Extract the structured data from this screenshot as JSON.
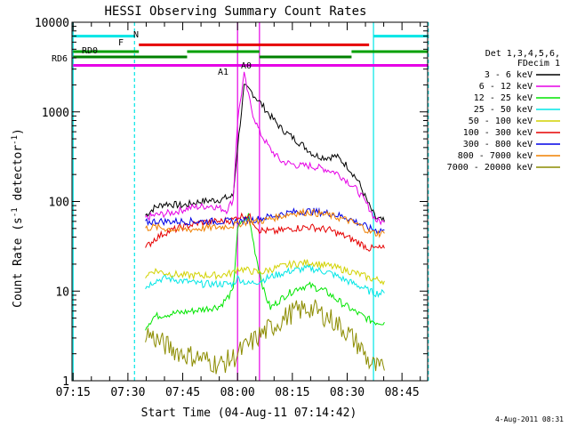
{
  "chart_data": {
    "type": "line",
    "title": "HESSI Observing Summary Count Rates",
    "xlabel": "Start Time (04-Aug-11 07:14:42)",
    "ylabel_main": "Count Rate (s",
    "ylabel_sup1": "-1",
    "ylabel_mid": " detector",
    "ylabel_sup2": "-1",
    "ylabel_end": ")",
    "yscale": "log",
    "xlim": [
      "07:14:42",
      "08:52:00"
    ],
    "ylim": [
      1,
      10000
    ],
    "x_ticks": [
      "07:15",
      "07:30",
      "07:45",
      "08:00",
      "08:15",
      "08:30",
      "08:45"
    ],
    "y_ticks": [
      "1",
      "10",
      "100",
      "1000",
      "10000"
    ],
    "legend": {
      "placement": "right",
      "header": [
        "Det 1,3,4,5,6,",
        "FDecim 1"
      ],
      "entries": [
        {
          "label": "3 - 6 keV",
          "color": "#000000"
        },
        {
          "label": "6 - 12 keV",
          "color": "#e600e6"
        },
        {
          "label": "12 - 25 keV",
          "color": "#00e600"
        },
        {
          "label": "25 - 50 keV",
          "color": "#00e6e6"
        },
        {
          "label": "50 - 100 keV",
          "color": "#d2d200"
        },
        {
          "label": "100 - 300 keV",
          "color": "#e60000"
        },
        {
          "label": "300 - 800 keV",
          "color": "#0000e6"
        },
        {
          "label": "800 - 7000 keV",
          "color": "#f08000"
        },
        {
          "label": "7000 - 20000 keV",
          "color": "#8c8c00"
        }
      ]
    },
    "series": [
      {
        "label_index": 0,
        "values": [
          [
            7.58,
            70
          ],
          [
            7.62,
            85
          ],
          [
            7.67,
            95
          ],
          [
            7.75,
            90
          ],
          [
            7.83,
            100
          ],
          [
            7.92,
            105
          ],
          [
            7.98,
            115
          ],
          [
            8.0,
            400
          ],
          [
            8.03,
            1900
          ],
          [
            8.06,
            1700
          ],
          [
            8.1,
            1300
          ],
          [
            8.15,
            900
          ],
          [
            8.2,
            650
          ],
          [
            8.25,
            520
          ],
          [
            8.3,
            420
          ],
          [
            8.35,
            330
          ],
          [
            8.4,
            310
          ],
          [
            8.45,
            320
          ],
          [
            8.5,
            250
          ],
          [
            8.55,
            170
          ],
          [
            8.6,
            90
          ],
          [
            8.63,
            65
          ],
          [
            8.67,
            60
          ]
        ]
      },
      {
        "label_index": 1,
        "values": [
          [
            7.58,
            65
          ],
          [
            7.62,
            70
          ],
          [
            7.7,
            75
          ],
          [
            7.78,
            85
          ],
          [
            7.88,
            90
          ],
          [
            7.95,
            80
          ],
          [
            7.98,
            105
          ],
          [
            8.0,
            800
          ],
          [
            8.03,
            2600
          ],
          [
            8.05,
            1500
          ],
          [
            8.07,
            950
          ],
          [
            8.1,
            600
          ],
          [
            8.15,
            380
          ],
          [
            8.2,
            280
          ],
          [
            8.28,
            250
          ],
          [
            8.33,
            250
          ],
          [
            8.4,
            230
          ],
          [
            8.45,
            210
          ],
          [
            8.5,
            170
          ],
          [
            8.55,
            130
          ],
          [
            8.6,
            85
          ],
          [
            8.63,
            62
          ],
          [
            8.67,
            58
          ]
        ]
      },
      {
        "label_index": 2,
        "values": [
          [
            7.58,
            4
          ],
          [
            7.62,
            5.2
          ],
          [
            7.67,
            5.5
          ],
          [
            7.75,
            5.8
          ],
          [
            7.83,
            6.2
          ],
          [
            7.92,
            6.8
          ],
          [
            7.98,
            10
          ],
          [
            8.0,
            50
          ],
          [
            8.05,
            70
          ],
          [
            8.08,
            28
          ],
          [
            8.12,
            10
          ],
          [
            8.15,
            6.5
          ],
          [
            8.22,
            9
          ],
          [
            8.28,
            11
          ],
          [
            8.33,
            11.5
          ],
          [
            8.4,
            10
          ],
          [
            8.47,
            7.5
          ],
          [
            8.53,
            6.0
          ],
          [
            8.6,
            4.8
          ],
          [
            8.63,
            4.5
          ],
          [
            8.67,
            4.5
          ]
        ]
      },
      {
        "label_index": 3,
        "values": [
          [
            7.58,
            11
          ],
          [
            7.62,
            13
          ],
          [
            7.67,
            14
          ],
          [
            7.75,
            13
          ],
          [
            7.83,
            12
          ],
          [
            7.92,
            12
          ],
          [
            7.98,
            12
          ],
          [
            8.0,
            14
          ],
          [
            8.05,
            12
          ],
          [
            8.1,
            13
          ],
          [
            8.17,
            15
          ],
          [
            8.25,
            17
          ],
          [
            8.33,
            18
          ],
          [
            8.42,
            16
          ],
          [
            8.5,
            13
          ],
          [
            8.57,
            11
          ],
          [
            8.6,
            10
          ],
          [
            8.63,
            9.5
          ],
          [
            8.67,
            9.5
          ]
        ]
      },
      {
        "label_index": 4,
        "values": [
          [
            7.58,
            15
          ],
          [
            7.62,
            17
          ],
          [
            7.67,
            16
          ],
          [
            7.75,
            15
          ],
          [
            7.83,
            15
          ],
          [
            7.92,
            15
          ],
          [
            7.98,
            16
          ],
          [
            8.0,
            18
          ],
          [
            8.05,
            17
          ],
          [
            8.1,
            16
          ],
          [
            8.17,
            18
          ],
          [
            8.25,
            20
          ],
          [
            8.33,
            21
          ],
          [
            8.42,
            19
          ],
          [
            8.5,
            17
          ],
          [
            8.57,
            15
          ],
          [
            8.6,
            14
          ],
          [
            8.63,
            13.5
          ],
          [
            8.67,
            13
          ]
        ]
      },
      {
        "label_index": 5,
        "values": [
          [
            7.58,
            30
          ],
          [
            7.62,
            38
          ],
          [
            7.67,
            45
          ],
          [
            7.75,
            52
          ],
          [
            7.83,
            58
          ],
          [
            7.92,
            60
          ],
          [
            7.98,
            62
          ],
          [
            8.0,
            68
          ],
          [
            8.05,
            70
          ],
          [
            8.1,
            48
          ],
          [
            8.17,
            46
          ],
          [
            8.25,
            50
          ],
          [
            8.33,
            52
          ],
          [
            8.42,
            48
          ],
          [
            8.5,
            40
          ],
          [
            8.57,
            33
          ],
          [
            8.6,
            30
          ],
          [
            8.63,
            30
          ],
          [
            8.67,
            30
          ]
        ]
      },
      {
        "label_index": 6,
        "values": [
          [
            7.58,
            58
          ],
          [
            7.62,
            60
          ],
          [
            7.67,
            60
          ],
          [
            7.75,
            60
          ],
          [
            7.83,
            60
          ],
          [
            7.92,
            60
          ],
          [
            7.98,
            60
          ],
          [
            8.0,
            60
          ],
          [
            8.05,
            62
          ],
          [
            8.1,
            64
          ],
          [
            8.17,
            70
          ],
          [
            8.25,
            76
          ],
          [
            8.33,
            78
          ],
          [
            8.42,
            74
          ],
          [
            8.5,
            66
          ],
          [
            8.57,
            55
          ],
          [
            8.6,
            50
          ],
          [
            8.63,
            48
          ],
          [
            8.67,
            48
          ]
        ]
      },
      {
        "label_index": 7,
        "values": [
          [
            7.58,
            50
          ],
          [
            7.62,
            52
          ],
          [
            7.67,
            50
          ],
          [
            7.75,
            48
          ],
          [
            7.83,
            50
          ],
          [
            7.92,
            52
          ],
          [
            7.98,
            54
          ],
          [
            8.0,
            56
          ],
          [
            8.05,
            60
          ],
          [
            8.1,
            60
          ],
          [
            8.17,
            66
          ],
          [
            8.25,
            74
          ],
          [
            8.33,
            76
          ],
          [
            8.42,
            70
          ],
          [
            8.5,
            62
          ],
          [
            8.57,
            52
          ],
          [
            8.6,
            46
          ],
          [
            8.63,
            44
          ],
          [
            8.67,
            44
          ]
        ]
      },
      {
        "label_index": 8,
        "values": [
          [
            7.58,
            3.5
          ],
          [
            7.62,
            3.0
          ],
          [
            7.67,
            2.5
          ],
          [
            7.75,
            2.0
          ],
          [
            7.83,
            1.8
          ],
          [
            7.92,
            1.5
          ],
          [
            7.98,
            1.8
          ],
          [
            8.0,
            2.0
          ],
          [
            8.05,
            2.5
          ],
          [
            8.1,
            3.2
          ],
          [
            8.17,
            4.2
          ],
          [
            8.25,
            5.8
          ],
          [
            8.33,
            6.5
          ],
          [
            8.42,
            5.0
          ],
          [
            8.5,
            3.5
          ],
          [
            8.57,
            2.2
          ],
          [
            8.6,
            1.6
          ],
          [
            8.63,
            1.4
          ],
          [
            8.67,
            1.3
          ]
        ]
      }
    ],
    "flag_labels": {
      "N": "N",
      "F": "F",
      "RD0": "RD0",
      "RD6": "RD6",
      "A1": "A1",
      "A0": "A0"
    },
    "flags": [
      {
        "name": "N",
        "color": "#00e6e6",
        "y": 7000,
        "segments": [
          [
            7.25,
            7.53
          ],
          [
            8.62,
            8.87
          ]
        ]
      },
      {
        "name": "F",
        "color": "#e60000",
        "y": 5600,
        "segments": [
          [
            7.55,
            8.6
          ]
        ]
      },
      {
        "name": "RD0",
        "color": "#00a000",
        "y": 4700,
        "segments": [
          [
            7.25,
            7.55
          ],
          [
            7.77,
            8.1
          ],
          [
            8.52,
            8.87
          ]
        ]
      },
      {
        "name": "RD6",
        "color": "#008000",
        "y": 4100,
        "segments": [
          [
            7.25,
            7.77
          ],
          [
            8.1,
            8.52
          ]
        ]
      },
      {
        "name": "A1",
        "color": "#e600e6",
        "y": 3300,
        "segments": [
          [
            7.25,
            8.87
          ]
        ]
      }
    ],
    "vlines": [
      {
        "x": 7.25,
        "color": "#00e6e6",
        "style": "solid"
      },
      {
        "x": 7.53,
        "color": "#00e6e6",
        "style": "dashed"
      },
      {
        "x": 8.62,
        "color": "#00e6e6",
        "style": "solid"
      },
      {
        "x": 8.87,
        "color": "#00e6e6",
        "style": "dashed"
      },
      {
        "x": 8.0,
        "color": "#e600e6",
        "style": "solid"
      },
      {
        "x": 8.1,
        "color": "#e600e6",
        "style": "solid"
      }
    ],
    "footer_date": "4-Aug-2011 08:31"
  }
}
